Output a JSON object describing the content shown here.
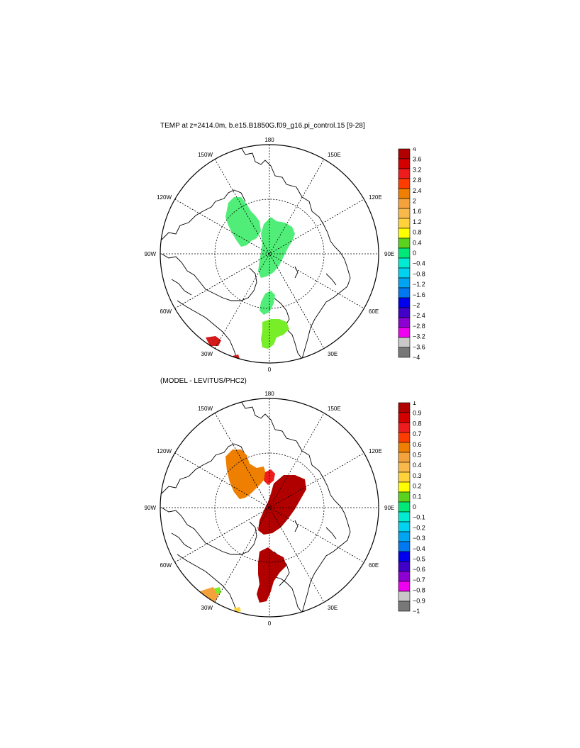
{
  "panels": [
    {
      "title": "TEMP at z=2414.0m, b.e15.B1850G.f09_g16.pi_control.15 [9-28]",
      "longitude_labels": {
        "lon_180": "180",
        "lon_150E": "150E",
        "lon_120E": "120E",
        "lon_90E": "90E",
        "lon_60E": "60E",
        "lon_30E": "30E",
        "lon_0": "0",
        "lon_30W": "30W",
        "lon_60W": "60W",
        "lon_90W": "90W",
        "lon_120W": "120W",
        "lon_150W": "150W"
      },
      "colorbar": {
        "labels": [
          "4",
          "3.6",
          "3.2",
          "2.8",
          "2.4",
          "2",
          "1.6",
          "1.2",
          "0.8",
          "0.4",
          "0",
          "−0.4",
          "−0.8",
          "−1.2",
          "−1.6",
          "−2",
          "−2.4",
          "−2.8",
          "−3.2",
          "−3.6",
          "−4"
        ],
        "colors": [
          "#b00000",
          "#d40000",
          "#ee1c1c",
          "#ff3c00",
          "#ee7f00",
          "#f4a23c",
          "#f9b94a",
          "#ffd23c",
          "#ffff00",
          "#5ad21e",
          "#00e978",
          "#00ebd2",
          "#00d2f0",
          "#00a4f0",
          "#0078f0",
          "#0000ee",
          "#4000c8",
          "#8c00d2",
          "#f000f0",
          "#c8c8c8",
          "#787878"
        ]
      },
      "field_colors": {
        "primary": "#50ee78",
        "secondary": "#78ee28",
        "accent": "#d41a1a"
      }
    },
    {
      "title": "(MODEL - LEVITUS/PHC2)",
      "longitude_labels": {
        "lon_180": "180",
        "lon_150E": "150E",
        "lon_120E": "120E",
        "lon_90E": "90E",
        "lon_60E": "60E",
        "lon_30E": "30E",
        "lon_0": "0",
        "lon_30W": "30W",
        "lon_60W": "60W",
        "lon_90W": "90W",
        "lon_120W": "120W",
        "lon_150W": "150W"
      },
      "colorbar": {
        "labels": [
          "1",
          "0.9",
          "0.8",
          "0.7",
          "0.6",
          "0.5",
          "0.4",
          "0.3",
          "0.2",
          "0.1",
          "0",
          "−0.1",
          "−0.2",
          "−0.3",
          "−0.4",
          "−0.5",
          "−0.6",
          "−0.7",
          "−0.8",
          "−0.9",
          "−1"
        ],
        "colors": [
          "#b00000",
          "#d40000",
          "#ee1c1c",
          "#ff3c00",
          "#ee7f00",
          "#f4a23c",
          "#f9b94a",
          "#ffd23c",
          "#ffff00",
          "#5ad21e",
          "#00e978",
          "#00ebd2",
          "#00d2f0",
          "#00a4f0",
          "#0078f0",
          "#0000ee",
          "#4000c8",
          "#8c00d2",
          "#f000f0",
          "#c8c8c8",
          "#787878"
        ]
      },
      "field_colors": {
        "primary": "#b00000",
        "secondary": "#ee7f00",
        "accent": "#ee1c1c"
      }
    }
  ]
}
